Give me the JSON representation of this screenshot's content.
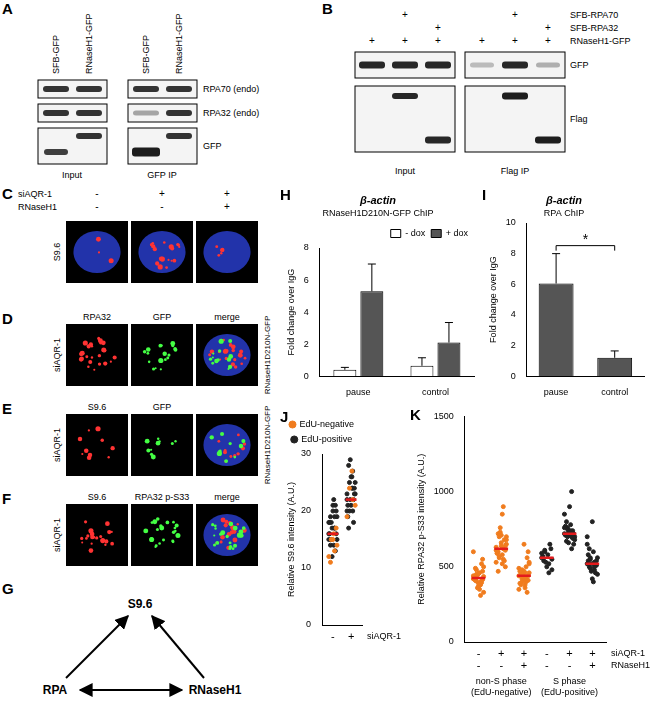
{
  "panels": {
    "A": {
      "letter": "A",
      "lanes": [
        "SFB-GFP",
        "RNaseH1-GFP"
      ],
      "groups": [
        "Input",
        "GFP IP"
      ],
      "rows": [
        "RPA70 (endo)",
        "RPA32 (endo)",
        "GFP"
      ]
    },
    "B": {
      "letter": "B",
      "conditions": [
        {
          "label": "SFB-RPA70",
          "marks": [
            null,
            "+",
            null,
            null,
            "+",
            null
          ]
        },
        {
          "label": "SFB-RPA32",
          "marks": [
            null,
            null,
            "+",
            null,
            null,
            "+"
          ]
        },
        {
          "label": "RNaseH1-GFP",
          "marks": [
            "+",
            "+",
            "+",
            "+",
            "+",
            "+"
          ]
        }
      ],
      "groups": [
        "Input",
        "Flag IP"
      ],
      "rows": [
        "GFP",
        "Flag"
      ]
    },
    "C": {
      "letter": "C",
      "conditions": [
        {
          "label": "siAQR-1",
          "marks": [
            "-",
            "+",
            "+"
          ]
        },
        {
          "label": "RNaseH1",
          "marks": [
            "-",
            "-",
            "+"
          ]
        }
      ],
      "row_label": "S9.6"
    },
    "D": {
      "letter": "D",
      "columns": [
        "RPA32",
        "GFP",
        "merge"
      ],
      "left_label": "siAQR-1",
      "right_label": "RNaseH1D210N-GFP"
    },
    "E": {
      "letter": "E",
      "columns": [
        "S9.6",
        "GFP",
        null
      ],
      "left_label": "siAQR-1",
      "right_label": "RNaseH1D210N-GFP"
    },
    "F": {
      "letter": "F",
      "columns": [
        "S9.6",
        "RPA32 p-S33",
        "merge"
      ],
      "left_label": "siAQR-1"
    },
    "G": {
      "letter": "G",
      "nodes": [
        "S9.6",
        "RPA",
        "RNaseH1"
      ]
    }
  },
  "chart_data": [
    {
      "panel": "H",
      "type": "bar",
      "title": "β-actin",
      "subtitle": "RNaseH1D210N-GFP ChIP",
      "y_label": "Fold change over IgG",
      "categories": [
        "pause",
        "control"
      ],
      "series": [
        {
          "name": "- dox",
          "color": "#ffffff",
          "values": [
            0.4,
            0.65
          ],
          "errors": [
            0.15,
            0.5
          ]
        },
        {
          "name": "+ dox",
          "color": "#555555",
          "values": [
            5.3,
            2.1
          ],
          "errors": [
            1.7,
            1.25
          ]
        }
      ],
      "ylim": [
        0,
        8
      ],
      "yticks": [
        0,
        2,
        4,
        6,
        8
      ],
      "legend": "top-right",
      "grid": false
    },
    {
      "panel": "I",
      "type": "bar",
      "title": "β-actin",
      "subtitle": "RPA ChIP",
      "y_label": "Fold change over IgG",
      "categories": [
        "pause",
        "control"
      ],
      "series": [
        {
          "color": "#555555",
          "values": [
            6.05,
            1.2
          ],
          "errors": [
            1.95,
            0.45
          ]
        }
      ],
      "ylim": [
        0,
        10
      ],
      "yticks": [
        0,
        2,
        4,
        6,
        8,
        10
      ],
      "annotation": "*",
      "grid": false
    },
    {
      "panel": "J",
      "type": "scatter",
      "y_label": "Relative S9.6 intensity (A.U.)",
      "category_rows": [
        {
          "label": "siAQR-1",
          "values": [
            "-",
            "+"
          ]
        }
      ],
      "series": [
        {
          "name": "EdU-negative",
          "color": "#f07c1e",
          "values": [
            [
              12,
              13,
              15,
              14,
              16,
              11,
              17,
              15
            ],
            [
              19,
              22,
              24,
              21,
              27
            ]
          ]
        },
        {
          "name": "EdU-positive",
          "color": "#222222",
          "values": [
            [
              16,
              17,
              18,
              15,
              14,
              19,
              20,
              21,
              16,
              13,
              12,
              18,
              17,
              15,
              19,
              22,
              14,
              16,
              20,
              18,
              21,
              17,
              15,
              19
            ],
            [
              22,
              20,
              25,
              23,
              26,
              28,
              24,
              21,
              19,
              18,
              22,
              23,
              27,
              20,
              25,
              24,
              17,
              23,
              26,
              21,
              22,
              29,
              20,
              24
            ]
          ]
        }
      ],
      "medians": [
        16,
        22
      ],
      "median_color": "#e41a1c",
      "ylim": [
        0,
        30
      ],
      "yticks": [
        0,
        10,
        20,
        30
      ],
      "legend": "top",
      "grid": false
    },
    {
      "panel": "K",
      "type": "scatter",
      "y_label": "Relative RPA32 p-S33 intensity (A.U.)",
      "category_rows": [
        {
          "label": "siAQR-1",
          "values": [
            "-",
            "+",
            "+",
            "-",
            "+",
            "+"
          ]
        },
        {
          "label": "RNaseH1",
          "values": [
            "-",
            "-",
            "+",
            "-",
            "-",
            "+"
          ]
        }
      ],
      "group_labels": [
        [
          "non-S phase",
          "(EdU-negative)"
        ],
        [
          "S phase",
          "(EdU-positive)"
        ]
      ],
      "series": [
        {
          "name": "EdU-negative",
          "color": "#f07c1e",
          "values": [
            [
              420,
              380,
              450,
              500,
              350,
              410,
              470,
              390,
              430,
              520,
              360,
              440,
              400,
              480,
              330,
              460,
              410,
              550,
              370,
              425,
              395,
              445,
              600,
              310,
              405,
              435,
              385,
              490,
              415,
              455
            ],
            [
              610,
              550,
              700,
              650,
              580,
              720,
              500,
              640,
              590,
              680,
              760,
              530,
              620,
              560,
              700,
              850,
              470,
              610,
              660,
              590,
              540,
              730,
              630,
              900,
              570,
              680,
              520,
              600,
              640,
              710
            ],
            [
              440,
              400,
              480,
              520,
              360,
              450,
              410,
              470,
              390,
              560,
              430,
              350,
              500,
              420,
              460,
              380,
              440,
              600,
              410,
              470,
              330,
              450,
              490,
              420,
              400,
              530,
              460,
              380,
              440,
              650
            ],
            null,
            null,
            null
          ]
        },
        {
          "name": "EdU-positive",
          "color": "#222222",
          "values": [
            null,
            null,
            null,
            [
              560,
              520,
              600,
              480,
              580,
              540,
              620,
              500,
              570,
              650,
              530,
              590,
              460,
              610,
              550
            ],
            [
              720,
              700,
              760,
              680,
              740,
              800,
              650,
              710,
              770,
              690,
              730,
              850,
              620,
              750,
              700,
              780,
              670,
              720,
              900,
              710,
              740,
              660,
              760,
              1000,
              700
            ],
            [
              520,
              480,
              560,
              450,
              600,
              500,
              540,
              420,
              580,
              510,
              470,
              650,
              530,
              490,
              560,
              400,
              620,
              510,
              800,
              540,
              460,
              520,
              700,
              500,
              550
            ]
          ]
        }
      ],
      "medians": [
        425,
        620,
        440,
        560,
        720,
        520
      ],
      "median_color": "#e41a1c",
      "ylim": [
        0,
        1500
      ],
      "yticks": [
        0,
        500,
        1000,
        1500
      ],
      "grid": false
    }
  ]
}
